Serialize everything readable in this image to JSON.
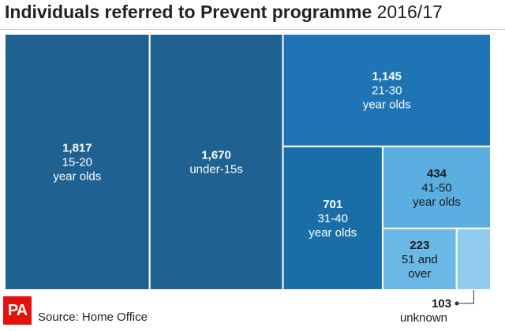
{
  "header": {
    "title_bold": "Individuals referred to Prevent programme",
    "title_period": "2016/17"
  },
  "footer": {
    "logo_text": "PA",
    "source": "Source: Home Office"
  },
  "colors": {
    "dark": "#1f6291",
    "medium": "#1e74b5",
    "medium2": "#1a6ea8",
    "light": "#5aaee0",
    "lighter": "#6ab8e6",
    "lightest": "#8fcaef"
  },
  "chart_data": {
    "type": "treemap",
    "title": "Individuals referred to Prevent programme 2016/17",
    "items": [
      {
        "value": 1817,
        "label": "1,817",
        "category": "15-20 year olds",
        "lines": [
          "15-20",
          "year olds"
        ]
      },
      {
        "value": 1670,
        "label": "1,670",
        "category": "under-15s",
        "lines": [
          "under-15s"
        ]
      },
      {
        "value": 1145,
        "label": "1,145",
        "category": "21-30 year olds",
        "lines": [
          "21-30",
          "year olds"
        ]
      },
      {
        "value": 701,
        "label": "701",
        "category": "31-40 year olds",
        "lines": [
          "31-40",
          "year olds"
        ]
      },
      {
        "value": 434,
        "label": "434",
        "category": "41-50 year olds",
        "lines": [
          "41-50",
          "year olds"
        ]
      },
      {
        "value": 223,
        "label": "223",
        "category": "51 and over",
        "lines": [
          "51 and",
          "over"
        ]
      },
      {
        "value": 103,
        "label": "103",
        "category": "unknown",
        "lines": [
          "unknown"
        ]
      }
    ]
  }
}
